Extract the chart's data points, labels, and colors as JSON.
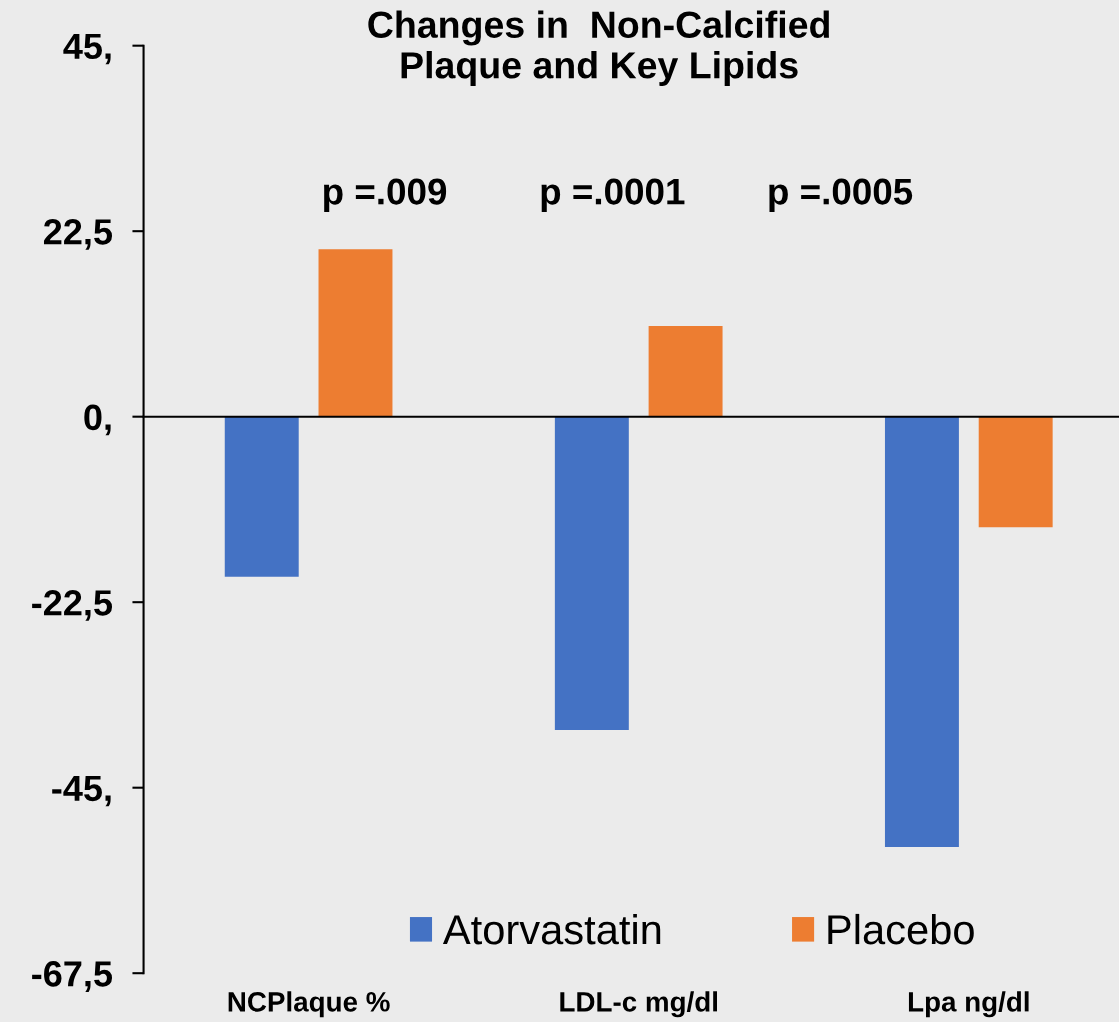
{
  "chart_data": {
    "type": "bar",
    "title": "Changes in  Non-Calcified\nPlaque and Key Lipids",
    "categories": [
      "NCPlaque %",
      "LDL-c mg/dl",
      "Lpa ng/dl"
    ],
    "series": [
      {
        "name": "Atorvastatin",
        "color": "#4472c4",
        "values": [
          -19.4,
          -38.0,
          -52.2
        ]
      },
      {
        "name": "Placebo",
        "color": "#ed7d31",
        "values": [
          20.3,
          11.0,
          -13.4
        ]
      }
    ],
    "ylim": [
      -67.5,
      45
    ],
    "yticks": [
      {
        "value": -67.5,
        "label": "-67,5"
      },
      {
        "value": -45,
        "label": "-45,"
      },
      {
        "value": -22.5,
        "label": "-22,5"
      },
      {
        "value": 0,
        "label": "0,"
      },
      {
        "value": 22.5,
        "label": "22,5"
      },
      {
        "value": 45,
        "label": "45,"
      }
    ],
    "annotations": [
      "p =.009",
      "p =.0001",
      "p =.0005"
    ],
    "legend": "bottom"
  }
}
